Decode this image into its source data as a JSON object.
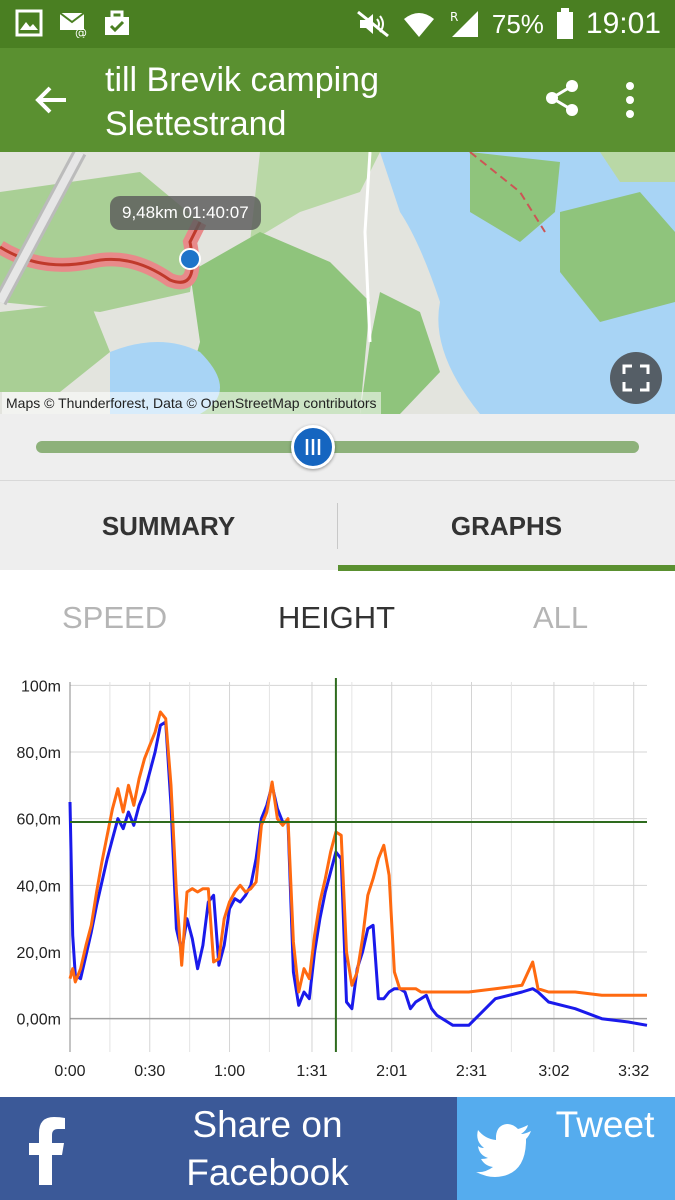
{
  "status_bar": {
    "battery_percent": "75%",
    "time": "19:01",
    "roaming_label": "R",
    "left_icons": [
      "gallery-icon",
      "email-icon",
      "work-bag-icon"
    ],
    "right_icons": [
      "mute-icon",
      "wifi-icon",
      "signal-icon",
      "battery-icon"
    ]
  },
  "app_bar": {
    "title": "till Brevik camping Slettestrand",
    "back_icon": "arrow-left-icon",
    "share_icon": "share-icon",
    "menu_icon": "more-vert-icon"
  },
  "map": {
    "tooltip": "9,48km  01:40:07",
    "attribution": "Maps © Thunderforest, Data © OpenStreetMap contributors",
    "fullscreen_icon": "fullscreen-icon"
  },
  "slider": {
    "position": 0.46
  },
  "tabs": [
    {
      "label": "SUMMARY",
      "selected": false
    },
    {
      "label": "GRAPHS",
      "selected": true
    }
  ],
  "sub_tabs": [
    {
      "label": "SPEED",
      "selected": false
    },
    {
      "label": "HEIGHT",
      "selected": true
    },
    {
      "label": "ALL",
      "selected": false
    }
  ],
  "colors": {
    "status_bar": "#4a7f22",
    "app_bar": "#5a9030",
    "series_a": "#1a1aeb",
    "series_b": "#ff6a10",
    "crosshair": "#2e6b1e",
    "facebook": "#3b5998",
    "twitter": "#55acee"
  },
  "chart_data": {
    "type": "line",
    "y_tick_labels": [
      "100m",
      "80,0m",
      "60,0m",
      "40,0m",
      "20,0m",
      "0,00m"
    ],
    "y_tick_values": [
      100,
      80,
      60,
      40,
      20,
      0
    ],
    "x_tick_labels": [
      "0:00",
      "0:30",
      "1:00",
      "1:31",
      "2:01",
      "2:31",
      "3:02",
      "3:32"
    ],
    "x_tick_values": [
      0,
      30,
      60,
      91,
      121,
      151,
      182,
      212
    ],
    "xlim": [
      0,
      217
    ],
    "ylim": [
      -10,
      101
    ],
    "grid": true,
    "crosshair": {
      "x": 100,
      "y": 59
    },
    "series": [
      {
        "color": "#1a1aeb",
        "x": [
          0,
          1,
          2,
          4,
          6,
          8,
          10,
          12,
          14,
          16,
          18,
          20,
          22,
          24,
          26,
          28,
          30,
          32,
          34,
          36,
          38,
          40,
          42,
          44,
          46,
          48,
          50,
          52,
          54,
          56,
          58,
          60,
          62,
          64,
          66,
          68,
          70,
          72,
          74,
          76,
          78,
          80,
          82,
          84,
          86,
          88,
          90,
          92,
          94,
          96,
          98,
          100,
          102,
          104,
          106,
          108,
          110,
          112,
          114,
          116,
          118,
          120,
          122,
          124,
          126,
          128,
          130,
          132,
          134,
          136,
          138,
          140,
          142,
          144,
          146,
          148,
          150,
          160,
          170,
          174,
          176,
          180,
          190,
          200,
          210,
          217
        ],
        "y": [
          65,
          25,
          13,
          12,
          19,
          26,
          34,
          41,
          48,
          54,
          60,
          57,
          62,
          58,
          64,
          68,
          74,
          80,
          88,
          89,
          64,
          27,
          20,
          30,
          24,
          15,
          22,
          35,
          37,
          16,
          22,
          33,
          36,
          35,
          37,
          40,
          48,
          60,
          64,
          70,
          63,
          59,
          59,
          14,
          4,
          8,
          6,
          20,
          30,
          38,
          44,
          50,
          48,
          5,
          3,
          15,
          20,
          27,
          28,
          6,
          6,
          8,
          9,
          9,
          8,
          3,
          5,
          6,
          7,
          3,
          1,
          0,
          -1,
          -2,
          -2,
          -2,
          -2,
          6,
          8,
          9,
          8,
          5,
          3,
          0,
          -1,
          -2
        ]
      },
      {
        "color": "#ff6a10",
        "x": [
          0,
          1,
          2,
          4,
          6,
          8,
          10,
          12,
          14,
          16,
          18,
          20,
          22,
          24,
          26,
          28,
          30,
          32,
          34,
          36,
          38,
          40,
          42,
          44,
          46,
          48,
          50,
          52,
          54,
          56,
          58,
          60,
          62,
          64,
          66,
          68,
          70,
          72,
          74,
          76,
          78,
          80,
          82,
          84,
          86,
          88,
          90,
          92,
          94,
          96,
          98,
          100,
          102,
          104,
          106,
          108,
          110,
          112,
          114,
          116,
          118,
          120,
          122,
          124,
          126,
          128,
          130,
          132,
          134,
          136,
          138,
          140,
          142,
          144,
          146,
          148,
          150,
          160,
          170,
          174,
          176,
          180,
          190,
          200,
          210,
          217
        ],
        "y": [
          12,
          15,
          11,
          15,
          22,
          28,
          38,
          47,
          55,
          63,
          69,
          62,
          70,
          64,
          72,
          78,
          82,
          86,
          92,
          90,
          70,
          38,
          16,
          38,
          39,
          38,
          39,
          39,
          17,
          18,
          30,
          35,
          38,
          40,
          38,
          39,
          41,
          58,
          62,
          71,
          60,
          58,
          60,
          23,
          8,
          15,
          12,
          25,
          35,
          42,
          50,
          56,
          55,
          20,
          10,
          14,
          24,
          37,
          42,
          48,
          52,
          43,
          14,
          9,
          9,
          9,
          9,
          8,
          8,
          8,
          8,
          8,
          8,
          8,
          8,
          8,
          8,
          9,
          10,
          17,
          9,
          8,
          8,
          7,
          7,
          7
        ]
      }
    ]
  },
  "share": {
    "facebook_label": "Share on Facebook",
    "twitter_label": "Tweet",
    "facebook_icon": "facebook-icon",
    "twitter_icon": "twitter-bird-icon"
  }
}
